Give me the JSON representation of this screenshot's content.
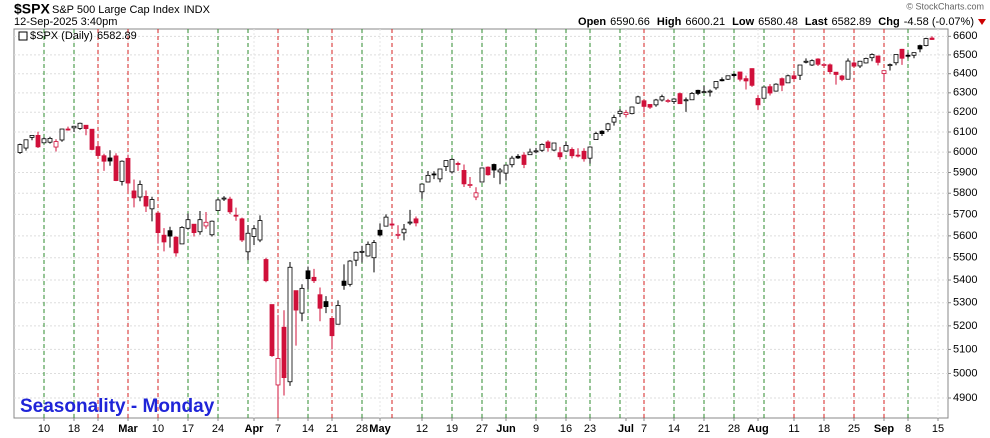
{
  "chart_data": {
    "type": "candlestick",
    "header": {
      "symbol": "$SPX",
      "name": "S&P 500 Large Cap Index",
      "exchange": "INDX",
      "timestamp": "12-Sep-2025 3:40pm",
      "open": "Open",
      "high": "High",
      "low": "Low",
      "last": "Last",
      "chg": "Chg",
      "change": "-4.58 (-0.07%)",
      "copyright": "© StockCharts.com",
      "legend": "$SPX (Daily)"
    },
    "annotation": "Seasonality - Monday",
    "log_scale": true,
    "grid": true,
    "up_color": "#000000",
    "down_color": "#d0103a",
    "marker_up_color": "#2e8b2e",
    "marker_down_color": "#d42020",
    "ylim": [
      4820,
      6640
    ],
    "yticks": [
      4900,
      5000,
      5100,
      5200,
      5300,
      5400,
      5500,
      5600,
      5700,
      5800,
      5900,
      6000,
      6100,
      6200,
      6300,
      6400,
      6500,
      6600
    ],
    "categories": [
      null,
      null,
      null,
      null,
      "10",
      null,
      null,
      null,
      null,
      "18",
      null,
      null,
      null,
      "24",
      null,
      null,
      null,
      null,
      "Mar",
      null,
      null,
      null,
      null,
      "10",
      null,
      null,
      null,
      null,
      "17",
      null,
      null,
      null,
      null,
      "24",
      null,
      null,
      null,
      null,
      null,
      "Apr",
      null,
      null,
      null,
      "7",
      null,
      null,
      null,
      null,
      "14",
      null,
      null,
      null,
      "21",
      null,
      null,
      null,
      null,
      "28",
      null,
      null,
      "May",
      null,
      null,
      null,
      null,
      null,
      null,
      "12",
      null,
      null,
      null,
      null,
      "19",
      null,
      null,
      null,
      null,
      "27",
      null,
      null,
      null,
      "Jun",
      null,
      null,
      null,
      null,
      "9",
      null,
      null,
      null,
      null,
      "16",
      null,
      null,
      null,
      "23",
      null,
      null,
      null,
      null,
      null,
      "Jul",
      null,
      null,
      "7",
      null,
      null,
      null,
      null,
      "14",
      null,
      null,
      null,
      null,
      "21",
      null,
      null,
      null,
      null,
      "28",
      null,
      null,
      null,
      "Aug",
      null,
      null,
      null,
      null,
      null,
      "11",
      null,
      null,
      null,
      null,
      "18",
      null,
      null,
      null,
      null,
      "25",
      null,
      null,
      null,
      null,
      "Sep",
      null,
      null,
      null,
      "8",
      null,
      null,
      null,
      null,
      "15"
    ],
    "marker_days": [
      4,
      9,
      13,
      18,
      23,
      28,
      33,
      38,
      43,
      48,
      52,
      57,
      62,
      67,
      72,
      77,
      81,
      86,
      91,
      95,
      100,
      104,
      109,
      114,
      119,
      124,
      129,
      134,
      139,
      144,
      148
    ],
    "ohlc": [
      [
        5998,
        6042,
        5991,
        6037
      ],
      [
        6020,
        6062,
        6007,
        6061
      ],
      [
        6073,
        6084,
        6059,
        6083
      ],
      [
        6083,
        6101,
        6020,
        6026
      ],
      [
        6046,
        6073,
        6044,
        6066
      ],
      [
        6049,
        6076,
        6042,
        6068
      ],
      [
        6025,
        6064,
        6003,
        6052
      ],
      [
        6060,
        6116,
        6051,
        6115
      ],
      [
        6115,
        6127,
        6107,
        6114
      ],
      [
        6121,
        6130,
        6100,
        6129
      ],
      [
        6118,
        6147,
        6111,
        6144
      ],
      [
        6134,
        6134,
        6084,
        6117
      ],
      [
        6114,
        6114,
        6009,
        6013
      ],
      [
        6027,
        6044,
        5977,
        5983
      ],
      [
        5982,
        5992,
        5908,
        5955
      ],
      [
        5971,
        6009,
        5933,
        5956
      ],
      [
        5981,
        5994,
        5858,
        5861
      ],
      [
        5857,
        5959,
        5837,
        5955
      ],
      [
        5969,
        5987,
        5810,
        5849
      ],
      [
        5811,
        5866,
        5733,
        5778
      ],
      [
        5782,
        5861,
        5762,
        5842
      ],
      [
        5785,
        5813,
        5711,
        5739
      ],
      [
        5726,
        5783,
        5667,
        5770
      ],
      [
        5706,
        5706,
        5565,
        5615
      ],
      [
        5603,
        5636,
        5529,
        5572
      ],
      [
        5624,
        5642,
        5546,
        5599
      ],
      [
        5594,
        5598,
        5505,
        5522
      ],
      [
        5563,
        5645,
        5563,
        5639
      ],
      [
        5635,
        5704,
        5628,
        5675
      ],
      [
        5654,
        5655,
        5597,
        5615
      ],
      [
        5619,
        5716,
        5605,
        5675
      ],
      [
        5646,
        5711,
        5633,
        5663
      ],
      [
        5605,
        5671,
        5597,
        5668
      ],
      [
        5718,
        5775,
        5718,
        5768
      ],
      [
        5775,
        5786,
        5763,
        5777
      ],
      [
        5772,
        5783,
        5702,
        5712
      ],
      [
        5696,
        5732,
        5670,
        5693
      ],
      [
        5679,
        5685,
        5572,
        5581
      ],
      [
        5527,
        5650,
        5489,
        5612
      ],
      [
        5597,
        5650,
        5558,
        5633
      ],
      [
        5581,
        5695,
        5571,
        5671
      ],
      [
        5492,
        5500,
        5390,
        5397
      ],
      [
        5292,
        5292,
        5069,
        5074
      ],
      [
        4953,
        5246,
        4835,
        5062
      ],
      [
        5194,
        5267,
        4910,
        4983
      ],
      [
        4966,
        5481,
        4949,
        5457
      ],
      [
        5353,
        5353,
        5116,
        5268
      ],
      [
        5255,
        5381,
        5220,
        5363
      ],
      [
        5441,
        5460,
        5359,
        5406
      ],
      [
        5412,
        5450,
        5387,
        5397
      ],
      [
        5335,
        5367,
        5220,
        5276
      ],
      [
        5305,
        5329,
        5255,
        5283
      ],
      [
        5232,
        5232,
        5101,
        5158
      ],
      [
        5207,
        5310,
        5207,
        5288
      ],
      [
        5395,
        5470,
        5357,
        5376
      ],
      [
        5381,
        5489,
        5371,
        5485
      ],
      [
        5489,
        5528,
        5462,
        5525
      ],
      [
        5529,
        5554,
        5478,
        5529
      ],
      [
        5508,
        5574,
        5505,
        5561
      ],
      [
        5500,
        5581,
        5434,
        5569
      ],
      [
        5626,
        5658,
        5597,
        5604
      ],
      [
        5645,
        5700,
        5645,
        5687
      ],
      [
        5655,
        5683,
        5640,
        5650
      ],
      [
        5605,
        5649,
        5586,
        5607
      ],
      [
        5614,
        5655,
        5579,
        5631
      ],
      [
        5663,
        5721,
        5650,
        5664
      ],
      [
        5679,
        5690,
        5644,
        5660
      ],
      [
        5807,
        5845,
        5774,
        5844
      ],
      [
        5854,
        5907,
        5853,
        5886
      ],
      [
        5893,
        5906,
        5868,
        5892
      ],
      [
        5869,
        5917,
        5853,
        5917
      ],
      [
        5929,
        5958,
        5907,
        5958
      ],
      [
        5903,
        5969,
        5895,
        5964
      ],
      [
        5944,
        5953,
        5908,
        5941
      ],
      [
        5910,
        5939,
        5830,
        5845
      ],
      [
        5842,
        5878,
        5825,
        5842
      ],
      [
        5782,
        5829,
        5767,
        5802
      ],
      [
        5854,
        5924,
        5854,
        5922
      ],
      [
        5926,
        5930,
        5885,
        5889
      ],
      [
        5939,
        5943,
        5874,
        5912
      ],
      [
        5903,
        5922,
        5843,
        5912
      ],
      [
        5897,
        5937,
        5861,
        5936
      ],
      [
        5938,
        5981,
        5925,
        5970
      ],
      [
        5979,
        5990,
        5966,
        5971
      ],
      [
        5985,
        5999,
        5921,
        5939
      ],
      [
        5987,
        6017,
        5987,
        6000
      ],
      [
        6005,
        6021,
        5994,
        6006
      ],
      [
        6009,
        6043,
        6001,
        6038
      ],
      [
        6050,
        6059,
        6002,
        6022
      ],
      [
        6010,
        6045,
        6004,
        6045
      ],
      [
        5997,
        6026,
        5963,
        5977
      ],
      [
        6005,
        6050,
        6005,
        6033
      ],
      [
        6013,
        6023,
        5969,
        5982
      ],
      [
        5985,
        6019,
        5973,
        5981
      ],
      [
        6004,
        6019,
        5953,
        5967
      ],
      [
        5970,
        6028,
        5943,
        6025
      ],
      [
        6062,
        6101,
        6061,
        6092
      ],
      [
        6104,
        6109,
        6080,
        6092
      ],
      [
        6112,
        6146,
        6101,
        6141
      ],
      [
        6150,
        6187,
        6132,
        6173
      ],
      [
        6193,
        6216,
        6175,
        6205
      ],
      [
        6188,
        6211,
        6174,
        6198
      ],
      [
        6193,
        6228,
        6189,
        6227
      ],
      [
        6247,
        6285,
        6242,
        6279
      ],
      [
        6259,
        6263,
        6201,
        6230
      ],
      [
        6240,
        6242,
        6217,
        6226
      ],
      [
        6238,
        6269,
        6228,
        6263
      ],
      [
        6263,
        6291,
        6255,
        6280
      ],
      [
        6255,
        6269,
        6249,
        6260
      ],
      [
        6255,
        6272,
        6242,
        6268
      ],
      [
        6296,
        6302,
        6242,
        6244
      ],
      [
        6259,
        6276,
        6202,
        6264
      ],
      [
        6264,
        6304,
        6264,
        6297
      ],
      [
        6313,
        6316,
        6288,
        6297
      ],
      [
        6305,
        6336,
        6303,
        6306
      ],
      [
        6306,
        6317,
        6281,
        6309
      ],
      [
        6326,
        6360,
        6316,
        6359
      ],
      [
        6369,
        6381,
        6360,
        6363
      ],
      [
        6371,
        6390,
        6367,
        6389
      ],
      [
        6397,
        6402,
        6379,
        6390
      ],
      [
        6409,
        6410,
        6360,
        6371
      ],
      [
        6374,
        6390,
        6317,
        6362
      ],
      [
        6427,
        6428,
        6331,
        6339
      ],
      [
        6271,
        6288,
        6212,
        6238
      ],
      [
        6272,
        6330,
        6271,
        6330
      ],
      [
        6332,
        6345,
        6286,
        6299
      ],
      [
        6309,
        6350,
        6306,
        6345
      ],
      [
        6374,
        6380,
        6309,
        6340
      ],
      [
        6352,
        6395,
        6352,
        6389
      ],
      [
        6389,
        6401,
        6366,
        6374
      ],
      [
        6392,
        6446,
        6367,
        6446
      ],
      [
        6466,
        6481,
        6455,
        6466
      ],
      [
        6446,
        6476,
        6441,
        6469
      ],
      [
        6478,
        6482,
        6441,
        6450
      ],
      [
        6445,
        6456,
        6437,
        6449
      ],
      [
        6447,
        6454,
        6397,
        6411
      ],
      [
        6408,
        6408,
        6343,
        6396
      ],
      [
        6388,
        6394,
        6361,
        6370
      ],
      [
        6371,
        6481,
        6370,
        6467
      ],
      [
        6457,
        6466,
        6438,
        6440
      ],
      [
        6441,
        6468,
        6430,
        6466
      ],
      [
        6457,
        6485,
        6454,
        6481
      ],
      [
        6485,
        6508,
        6466,
        6502
      ],
      [
        6494,
        6495,
        6444,
        6460
      ],
      [
        6401,
        6417,
        6360,
        6416
      ],
      [
        6445,
        6454,
        6417,
        6448
      ],
      [
        6458,
        6502,
        6445,
        6502
      ],
      [
        6530,
        6532,
        6447,
        6482
      ],
      [
        6498,
        6512,
        6481,
        6495
      ],
      [
        6498,
        6513,
        6482,
        6512
      ],
      [
        6550,
        6555,
        6514,
        6532
      ],
      [
        6550,
        6592,
        6546,
        6588
      ],
      [
        6590.66,
        6600.21,
        6580.48,
        6582.89
      ],
      null
    ]
  }
}
